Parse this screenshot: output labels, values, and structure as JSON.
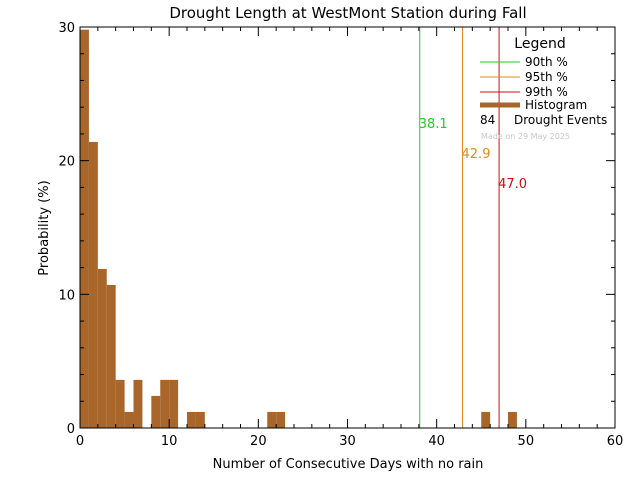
{
  "chart_data": {
    "type": "bar",
    "title": "Drought Length at WestMont Station during Fall",
    "xlabel": "Number of Consecutive Days with no rain",
    "ylabel": "Probability (%)",
    "xlim": [
      0,
      60
    ],
    "ylim": [
      0,
      30
    ],
    "xticks": [
      "0",
      "10",
      "20",
      "30",
      "40",
      "50",
      "60"
    ],
    "yticks": [
      "0",
      "10",
      "20",
      "30"
    ],
    "bin_width": 1,
    "histogram": {
      "name": "Histogram",
      "color": "#a8662a",
      "bins": [
        {
          "x": 0,
          "value": 29.8
        },
        {
          "x": 1,
          "value": 21.4
        },
        {
          "x": 2,
          "value": 11.9
        },
        {
          "x": 3,
          "value": 10.7
        },
        {
          "x": 4,
          "value": 3.6
        },
        {
          "x": 5,
          "value": 1.2
        },
        {
          "x": 6,
          "value": 3.6
        },
        {
          "x": 8,
          "value": 2.4
        },
        {
          "x": 9,
          "value": 3.6
        },
        {
          "x": 10,
          "value": 3.6
        },
        {
          "x": 12,
          "value": 1.2
        },
        {
          "x": 13,
          "value": 1.2
        },
        {
          "x": 21,
          "value": 1.2
        },
        {
          "x": 22,
          "value": 1.2
        },
        {
          "x": 45,
          "value": 1.2
        },
        {
          "x": 48,
          "value": 1.2
        }
      ]
    },
    "percentiles": [
      {
        "name": "90th %",
        "value": 38.1,
        "label": "38.1",
        "color": "#22cc22"
      },
      {
        "name": "95th %",
        "value": 42.9,
        "label": "42.9",
        "color": "#e08a1a"
      },
      {
        "name": "99th %",
        "value": 47.0,
        "label": "47.0",
        "color": "#cc1111"
      }
    ],
    "legend": {
      "title": "Legend",
      "position": "top-right",
      "events_count": "84",
      "events_label": "Drought Events",
      "note": "Made on 29 May 2025"
    }
  }
}
